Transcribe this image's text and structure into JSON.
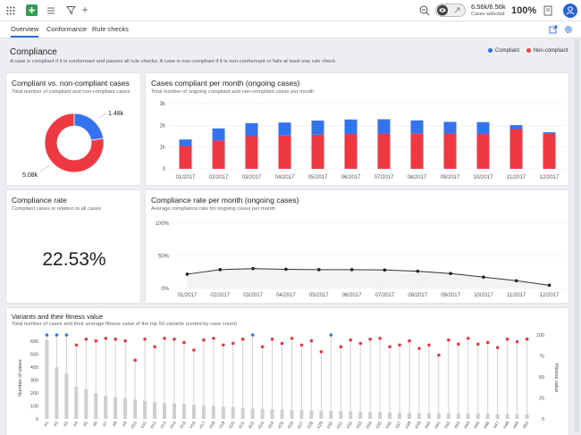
{
  "topbar": {
    "cases_count": "6.56k/6.56k",
    "cases_caption": "Cases selected",
    "cases_percent": "100%"
  },
  "tabs": [
    {
      "label": "Overview"
    },
    {
      "label": "Conformance"
    },
    {
      "label": "Rule checks"
    }
  ],
  "page": {
    "title": "Compliance",
    "description": "A case is compliant if it is conformant and passes all rule checks. A case is non-compliant if it is non-conformant or fails at least one rule check.",
    "legend": [
      {
        "label": "Compliant",
        "color": "#2d6ff2"
      },
      {
        "label": "Non-compliant",
        "color": "#ef3b46"
      }
    ]
  },
  "colors": {
    "compliant": "#3572ee",
    "noncompliant": "#ee3942",
    "variant_bar": "#cfcfcf",
    "fitness_line": "#d2d2d2"
  },
  "cards": {
    "donut": {
      "title": "Compliant vs. non-compliant cases",
      "subtitle": "Total number of compliant and non-compliant cases"
    },
    "monthly": {
      "title": "Cases compliant per month (ongoing cases)",
      "subtitle": "Total number of ongoing compliant and non-compliant cases per month"
    },
    "rate": {
      "title": "Compliance rate",
      "subtitle": "Compliant cases in relation to all cases",
      "value": "22.53%"
    },
    "rate_monthly": {
      "title": "Compliance rate per month (ongoing cases)",
      "subtitle": "Average compliance rate for ongoing cases per month"
    },
    "variants": {
      "title": "Variants and their fitness value",
      "subtitle": "Total number of cases and their average fitness value of the top 50 variants (sorted by case count)"
    }
  },
  "chart_data": [
    {
      "type": "pie",
      "labels": [
        "Compliant",
        "Non-compliant"
      ],
      "values": [
        1480,
        5080
      ],
      "data_labels": [
        "1.48k",
        "5.08k"
      ]
    },
    {
      "type": "bar",
      "categories": [
        "01/2017",
        "02/2017",
        "03/2017",
        "04/2017",
        "05/2017",
        "06/2017",
        "07/2017",
        "08/2017",
        "09/2017",
        "10/2017",
        "11/2017",
        "12/2017"
      ],
      "series": [
        {
          "name": "Non-compliant",
          "values": [
            1050,
            1300,
            1500,
            1530,
            1570,
            1600,
            1620,
            1630,
            1620,
            1600,
            1830,
            1620
          ]
        },
        {
          "name": "Compliant",
          "values": [
            300,
            560,
            600,
            600,
            650,
            670,
            660,
            600,
            540,
            550,
            180,
            60
          ]
        }
      ],
      "yticks": [
        "0",
        "1k",
        "2k",
        "3k"
      ],
      "ylim": [
        0,
        3000
      ]
    },
    {
      "type": "line",
      "x": [
        "01/2017",
        "02/2017",
        "03/2017",
        "04/2017",
        "05/2017",
        "06/2017",
        "07/2017",
        "08/2017",
        "09/2017",
        "10/2017",
        "11/2017",
        "12/2017"
      ],
      "values": [
        22,
        29,
        30.5,
        29.5,
        29,
        29,
        28.5,
        26.5,
        23,
        17.5,
        12,
        5
      ],
      "yticks": [
        "0%",
        "50%",
        "100%"
      ],
      "ylim": [
        0,
        100
      ]
    },
    {
      "type": "bar",
      "ylabel": "Number of cases",
      "ylabel_right": "Fitness value",
      "ylim": [
        0,
        650
      ],
      "ylim_right": [
        0,
        100
      ],
      "yticks_left": [
        "0",
        "100",
        "200",
        "300",
        "400",
        "500",
        "600"
      ],
      "yticks_right": [
        "0",
        "25",
        "50",
        "75",
        "100"
      ],
      "categories": [
        "#1",
        "#2",
        "#3",
        "#4",
        "#5",
        "#6",
        "#7",
        "#8",
        "#9",
        "#10",
        "#11",
        "#12",
        "#13",
        "#14",
        "#15",
        "#16",
        "#17",
        "#18",
        "#19",
        "#20",
        "#21",
        "#22",
        "#23",
        "#24",
        "#25",
        "#26",
        "#27",
        "#28",
        "#29",
        "#30",
        "#31",
        "#32",
        "#33",
        "#34",
        "#35",
        "#36",
        "#37",
        "#38",
        "#39",
        "#40",
        "#41",
        "#42",
        "#43",
        "#44",
        "#45",
        "#46",
        "#47",
        "#48",
        "#49",
        "#50"
      ],
      "case_counts": [
        610,
        400,
        350,
        250,
        230,
        200,
        175,
        170,
        160,
        150,
        140,
        130,
        125,
        120,
        115,
        110,
        105,
        100,
        95,
        90,
        85,
        80,
        78,
        75,
        72,
        70,
        68,
        66,
        64,
        62,
        60,
        58,
        56,
        54,
        52,
        50,
        48,
        47,
        46,
        45,
        44,
        43,
        42,
        41,
        40,
        39,
        38,
        37,
        36,
        35
      ],
      "fitness": [
        100,
        100,
        100,
        88,
        95,
        93,
        96,
        95,
        93,
        70,
        95,
        86,
        96,
        95,
        91,
        82,
        94,
        96,
        88,
        90,
        95,
        100,
        86,
        95,
        90,
        96,
        88,
        93,
        80,
        100,
        86,
        94,
        90,
        95,
        96,
        86,
        88,
        93,
        84,
        88,
        76,
        94,
        89,
        96,
        89,
        91,
        85,
        95,
        92,
        95
      ],
      "fully_fit": [
        true,
        true,
        true,
        false,
        false,
        false,
        false,
        false,
        false,
        false,
        false,
        false,
        false,
        false,
        false,
        false,
        false,
        false,
        false,
        false,
        false,
        true,
        false,
        false,
        false,
        false,
        false,
        false,
        false,
        true,
        false,
        false,
        false,
        false,
        false,
        false,
        false,
        false,
        false,
        false,
        false,
        false,
        false,
        false,
        false,
        false,
        false,
        false,
        false,
        false
      ]
    }
  ]
}
